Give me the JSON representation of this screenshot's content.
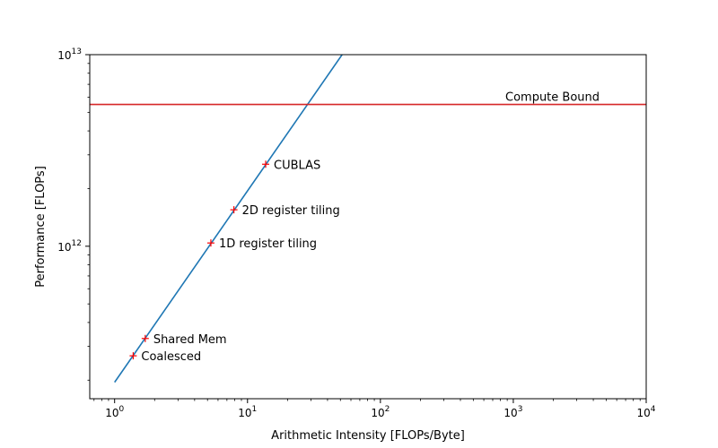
{
  "chart_data": {
    "type": "line",
    "xlabel": "Arithmetic Intensity [FLOPs/Byte]",
    "ylabel": "Performance [FLOPs]",
    "xscale": "log",
    "yscale": "log",
    "xlim": [
      0.65,
      10000
    ],
    "ylim": [
      160000000000.0,
      10000000000000.0
    ],
    "grid": false,
    "x_ticks": [
      {
        "value": 1,
        "base": "10",
        "exp": "0"
      },
      {
        "value": 10,
        "base": "10",
        "exp": "1"
      },
      {
        "value": 100,
        "base": "10",
        "exp": "2"
      },
      {
        "value": 1000,
        "base": "10",
        "exp": "3"
      },
      {
        "value": 10000,
        "base": "10",
        "exp": "4"
      }
    ],
    "y_ticks": [
      {
        "value": 1000000000000.0,
        "base": "10",
        "exp": "12"
      },
      {
        "value": 10000000000000.0,
        "base": "10",
        "exp": "13"
      }
    ],
    "series": [
      {
        "kind": "memory-bound-line",
        "color": "#1f77b4",
        "x": [
          1,
          51.5
        ],
        "y": [
          195000000000.0,
          10000000000000.0
        ]
      },
      {
        "kind": "compute-bound-line",
        "label": "Compute Bound",
        "color": "#d62728",
        "y": 5500000000000.0
      }
    ],
    "points": [
      {
        "label": "Coalesced",
        "x": 1.38,
        "y": 268000000000.0
      },
      {
        "label": "Shared Mem",
        "x": 1.7,
        "y": 330000000000.0
      },
      {
        "label": "1D register tiling",
        "x": 5.3,
        "y": 1040000000000.0
      },
      {
        "label": "2D register tiling",
        "x": 7.9,
        "y": 1550000000000.0
      },
      {
        "label": "CUBLAS",
        "x": 13.7,
        "y": 2680000000000.0
      }
    ],
    "marker_color": "#ff0000"
  }
}
